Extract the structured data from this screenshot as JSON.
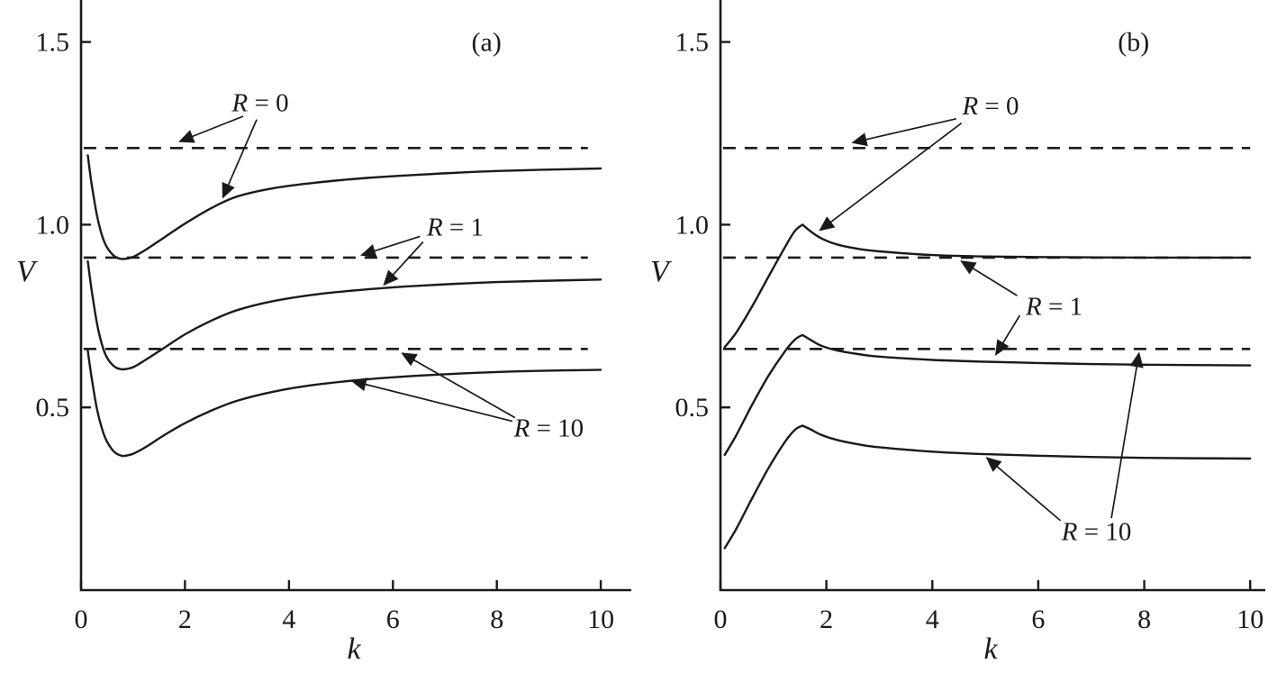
{
  "figure": {
    "background": "#ffffff",
    "ink": "#1a1a1a",
    "description": "Two-panel line chart of V versus k showing solid curves and dashed reference levels for R = 0, R = 1 and R = 10"
  },
  "chart_data": [
    {
      "type": "line",
      "panel": "a",
      "panel_label": "(a)",
      "panel_label_pos": [
        7.8,
        1.5
      ],
      "xlabel": "k",
      "ylabel": "V",
      "xlim": [
        0,
        10.5
      ],
      "ylim": [
        0,
        1.615
      ],
      "grid": false,
      "legend": "none",
      "xticks": [
        {
          "v": 0,
          "label": "0"
        },
        {
          "v": 2,
          "label": "2"
        },
        {
          "v": 4,
          "label": "4"
        },
        {
          "v": 6,
          "label": "6"
        },
        {
          "v": 8,
          "label": "8"
        },
        {
          "v": 10,
          "label": "10"
        }
      ],
      "yticks": [
        {
          "v": 0.5,
          "label": "0.5"
        },
        {
          "v": 1.0,
          "label": "1.0"
        },
        {
          "v": 1.5,
          "label": "1.5"
        }
      ],
      "dashed_lines": [
        {
          "series": "R = 0",
          "y": 1.21,
          "x0": 0.05,
          "x1": 9.75
        },
        {
          "series": "R = 1",
          "y": 0.91,
          "x0": 0.05,
          "x1": 9.75
        },
        {
          "series": "R = 10",
          "y": 0.66,
          "x0": 0.05,
          "x1": 9.75
        }
      ],
      "series": [
        {
          "name": "R = 0",
          "points": [
            [
              0.13,
              1.19
            ],
            [
              0.2,
              1.115
            ],
            [
              0.3,
              1.03
            ],
            [
              0.4,
              0.972
            ],
            [
              0.5,
              0.938
            ],
            [
              0.65,
              0.913
            ],
            [
              0.8,
              0.906
            ],
            [
              1.0,
              0.912
            ],
            [
              1.25,
              0.932
            ],
            [
              1.6,
              0.965
            ],
            [
              2.0,
              1.003
            ],
            [
              2.5,
              1.045
            ],
            [
              3.0,
              1.077
            ],
            [
              3.7,
              1.1
            ],
            [
              4.5,
              1.115
            ],
            [
              5.5,
              1.128
            ],
            [
              6.5,
              1.137
            ],
            [
              8.0,
              1.147
            ],
            [
              10.0,
              1.154
            ]
          ]
        },
        {
          "name": "R = 1",
          "points": [
            [
              0.13,
              0.9
            ],
            [
              0.2,
              0.825
            ],
            [
              0.3,
              0.735
            ],
            [
              0.4,
              0.673
            ],
            [
              0.5,
              0.636
            ],
            [
              0.65,
              0.611
            ],
            [
              0.8,
              0.604
            ],
            [
              1.0,
              0.61
            ],
            [
              1.25,
              0.631
            ],
            [
              1.6,
              0.663
            ],
            [
              2.0,
              0.7
            ],
            [
              2.5,
              0.737
            ],
            [
              3.0,
              0.766
            ],
            [
              3.7,
              0.791
            ],
            [
              4.5,
              0.809
            ],
            [
              5.5,
              0.823
            ],
            [
              6.5,
              0.833
            ],
            [
              8.0,
              0.843
            ],
            [
              10.0,
              0.85
            ]
          ]
        },
        {
          "name": "R = 10",
          "points": [
            [
              0.13,
              0.655
            ],
            [
              0.2,
              0.585
            ],
            [
              0.3,
              0.5
            ],
            [
              0.4,
              0.443
            ],
            [
              0.5,
              0.406
            ],
            [
              0.65,
              0.377
            ],
            [
              0.8,
              0.367
            ],
            [
              1.0,
              0.373
            ],
            [
              1.25,
              0.392
            ],
            [
              1.6,
              0.424
            ],
            [
              2.0,
              0.457
            ],
            [
              2.5,
              0.491
            ],
            [
              3.0,
              0.518
            ],
            [
              3.7,
              0.543
            ],
            [
              4.5,
              0.562
            ],
            [
              5.5,
              0.577
            ],
            [
              6.5,
              0.587
            ],
            [
              8.0,
              0.597
            ],
            [
              10.0,
              0.603
            ]
          ]
        }
      ],
      "annotations": [
        {
          "label": "R = 0",
          "pos": [
            3.45,
            1.335
          ],
          "arrows": [
            {
              "from": [
                3.12,
                1.297
              ],
              "to": [
                1.9,
                1.228
              ]
            },
            {
              "from": [
                3.38,
                1.288
              ],
              "to": [
                2.73,
                1.075
              ]
            }
          ]
        },
        {
          "label": "R = 1",
          "pos": [
            7.2,
            0.995
          ],
          "arrows": [
            {
              "from": [
                6.52,
                0.968
              ],
              "to": [
                5.4,
                0.917
              ]
            },
            {
              "from": [
                6.58,
                0.953
              ],
              "to": [
                5.83,
                0.836
              ]
            }
          ]
        },
        {
          "label": "R = 10",
          "pos": [
            9.0,
            0.445
          ],
          "arrows": [
            {
              "from": [
                8.35,
                0.472
              ],
              "to": [
                6.18,
                0.648
              ]
            },
            {
              "from": [
                8.3,
                0.462
              ],
              "to": [
                5.22,
                0.572
              ]
            }
          ]
        }
      ]
    },
    {
      "type": "line",
      "panel": "b",
      "panel_label": "(b)",
      "panel_label_pos": [
        7.8,
        1.5
      ],
      "xlabel": "k",
      "ylabel": "V",
      "xlim": [
        0,
        10.2
      ],
      "ylim": [
        0,
        1.615
      ],
      "grid": false,
      "legend": "none",
      "xticks": [
        {
          "v": 0,
          "label": "0"
        },
        {
          "v": 2,
          "label": "2"
        },
        {
          "v": 4,
          "label": "4"
        },
        {
          "v": 6,
          "label": "6"
        },
        {
          "v": 8,
          "label": "8"
        },
        {
          "v": 10,
          "label": "10"
        }
      ],
      "yticks": [
        {
          "v": 0.5,
          "label": "0.5"
        },
        {
          "v": 1.0,
          "label": "1.0"
        },
        {
          "v": 1.5,
          "label": "1.5"
        }
      ],
      "dashed_lines": [
        {
          "series": "R = 0",
          "y": 1.21,
          "x0": 0.05,
          "x1": 10.0
        },
        {
          "series": "R = 1",
          "y": 0.91,
          "x0": 0.05,
          "x1": 10.0
        },
        {
          "series": "R = 10",
          "y": 0.66,
          "x0": 0.05,
          "x1": 10.0
        }
      ],
      "series": [
        {
          "name": "R = 0",
          "points": [
            [
              0.08,
              0.665
            ],
            [
              0.3,
              0.705
            ],
            [
              0.6,
              0.777
            ],
            [
              0.9,
              0.856
            ],
            [
              1.2,
              0.934
            ],
            [
              1.4,
              0.982
            ],
            [
              1.55,
              1.0
            ],
            [
              1.7,
              0.982
            ],
            [
              1.9,
              0.963
            ],
            [
              2.2,
              0.946
            ],
            [
              2.6,
              0.934
            ],
            [
              3.0,
              0.927
            ],
            [
              4.0,
              0.917
            ],
            [
              5.0,
              0.913
            ],
            [
              6.5,
              0.911
            ],
            [
              8.0,
              0.91
            ],
            [
              10.0,
              0.91
            ]
          ]
        },
        {
          "name": "R = 1",
          "points": [
            [
              0.08,
              0.37
            ],
            [
              0.3,
              0.424
            ],
            [
              0.6,
              0.508
            ],
            [
              0.9,
              0.585
            ],
            [
              1.2,
              0.65
            ],
            [
              1.4,
              0.685
            ],
            [
              1.55,
              0.698
            ],
            [
              1.7,
              0.685
            ],
            [
              1.9,
              0.669
            ],
            [
              2.2,
              0.656
            ],
            [
              2.6,
              0.646
            ],
            [
              3.0,
              0.639
            ],
            [
              4.0,
              0.63
            ],
            [
              5.0,
              0.625
            ],
            [
              6.5,
              0.62
            ],
            [
              8.0,
              0.617
            ],
            [
              10.0,
              0.615
            ]
          ]
        },
        {
          "name": "R = 10",
          "points": [
            [
              0.08,
              0.115
            ],
            [
              0.3,
              0.168
            ],
            [
              0.6,
              0.252
            ],
            [
              0.9,
              0.332
            ],
            [
              1.2,
              0.402
            ],
            [
              1.4,
              0.438
            ],
            [
              1.55,
              0.45
            ],
            [
              1.7,
              0.44
            ],
            [
              1.9,
              0.425
            ],
            [
              2.2,
              0.411
            ],
            [
              2.6,
              0.399
            ],
            [
              3.0,
              0.391
            ],
            [
              4.0,
              0.379
            ],
            [
              5.0,
              0.372
            ],
            [
              6.5,
              0.366
            ],
            [
              8.0,
              0.362
            ],
            [
              10.0,
              0.36
            ]
          ]
        }
      ],
      "annotations": [
        {
          "label": "R = 0",
          "pos": [
            5.1,
            1.327
          ],
          "arrows": [
            {
              "from": [
                4.45,
                1.29
              ],
              "to": [
                2.5,
                1.225
              ]
            },
            {
              "from": [
                4.55,
                1.278
              ],
              "to": [
                1.88,
                0.985
              ]
            }
          ]
        },
        {
          "label": "R = 1",
          "pos": [
            6.3,
            0.778
          ],
          "arrows": [
            {
              "from": [
                5.6,
                0.806
              ],
              "to": [
                4.55,
                0.9
              ]
            },
            {
              "from": [
                5.65,
                0.752
              ],
              "to": [
                5.2,
                0.645
              ]
            }
          ]
        },
        {
          "label": "R = 10",
          "pos": [
            7.1,
            0.162
          ],
          "arrows": [
            {
              "from": [
                6.42,
                0.19
              ],
              "to": [
                5.03,
                0.362
              ]
            },
            {
              "from": [
                7.38,
                0.197
              ],
              "to": [
                7.9,
                0.648
              ]
            }
          ]
        }
      ]
    }
  ]
}
